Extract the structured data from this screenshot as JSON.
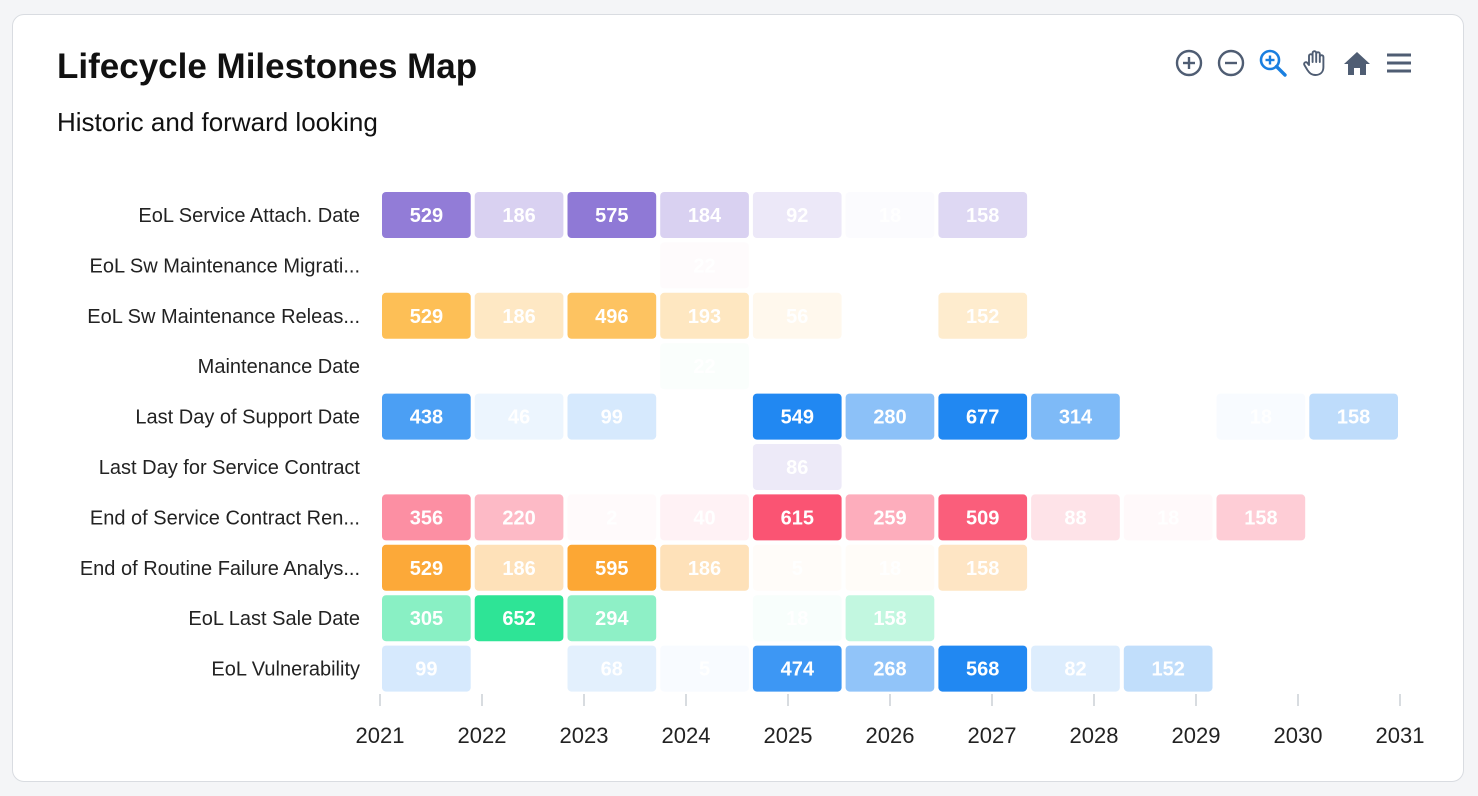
{
  "toolbar": {
    "icons": [
      "zoom-in-icon",
      "zoom-out-icon",
      "zoom-selection-icon",
      "pan-hand-icon",
      "reset-home-icon",
      "menu-icon"
    ],
    "active_color": "#1a7fe0",
    "idle_color": "#4f5d73"
  },
  "chart_data": {
    "type": "heatmap",
    "title": "Lifecycle Milestones Map",
    "subtitle": "Historic and forward looking",
    "xlabel": "",
    "ylabel": "",
    "x_ticks": [
      "2021",
      "2022",
      "2023",
      "2024",
      "2025",
      "2026",
      "2027",
      "2028",
      "2029",
      "2030",
      "2031"
    ],
    "rows": [
      {
        "label": "EoL Service Attach. Date",
        "color": "#8f79d6",
        "values": [
          529,
          186,
          575,
          184,
          92,
          18,
          158,
          null,
          null,
          null,
          null
        ]
      },
      {
        "label": "EoL Sw Maintenance Migrati...",
        "color": "#f2a5b0",
        "values": [
          null,
          null,
          null,
          22,
          null,
          null,
          null,
          null,
          null,
          null,
          null
        ]
      },
      {
        "label": "EoL Sw Maintenance Releas...",
        "color": "#fdbd52",
        "values": [
          529,
          186,
          496,
          193,
          56,
          null,
          152,
          null,
          null,
          null,
          null
        ]
      },
      {
        "label": "Maintenance Date",
        "color": "#7fe0b8",
        "values": [
          null,
          null,
          null,
          22,
          null,
          null,
          null,
          null,
          null,
          null,
          null
        ]
      },
      {
        "label": "Last Day of Support Date",
        "color": "#2188f2",
        "values": [
          438,
          46,
          99,
          null,
          549,
          280,
          677,
          314,
          null,
          18,
          158
        ]
      },
      {
        "label": "Last Day for Service Contract",
        "color": "#8f79d6",
        "values": [
          null,
          null,
          null,
          null,
          86,
          null,
          null,
          null,
          null,
          null,
          null
        ]
      },
      {
        "label": "End of Service Contract Ren...",
        "color": "#fa5473",
        "values": [
          356,
          220,
          2,
          40,
          615,
          259,
          509,
          88,
          18,
          158,
          null
        ]
      },
      {
        "label": "End of Routine Failure Analys...",
        "color": "#fca734",
        "values": [
          529,
          186,
          595,
          186,
          5,
          18,
          158,
          null,
          null,
          null,
          null
        ]
      },
      {
        "label": "EoL Last Sale Date",
        "color": "#2ee496",
        "values": [
          305,
          652,
          294,
          null,
          18,
          158,
          null,
          null,
          null,
          null,
          null
        ]
      },
      {
        "label": "EoL Vulnerability",
        "color": "#2188f2",
        "values": [
          99,
          null,
          68,
          5,
          474,
          268,
          568,
          82,
          152,
          null,
          null
        ]
      }
    ],
    "legend": false,
    "grid": false
  }
}
